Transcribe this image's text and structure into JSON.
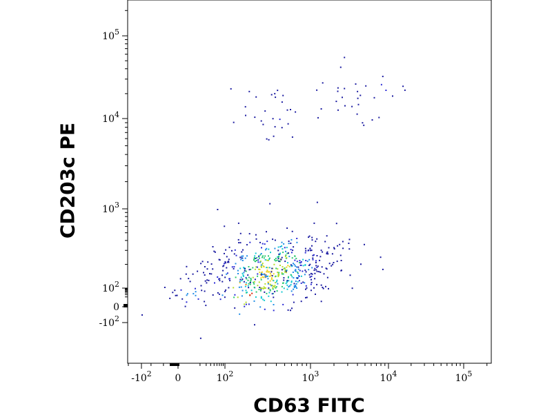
{
  "chart_data": {
    "type": "scatter",
    "plot_style": "density (pseudocolor) flow cytometry dot plot",
    "xlabel": "CD63 FITC",
    "ylabel": "CD203c PE",
    "x_scale": "biexponential (logicle)",
    "y_scale": "biexponential (logicle)",
    "xlim": [
      -200,
      200000
    ],
    "ylim": [
      -500,
      400000
    ],
    "grid": false,
    "x_ticks": [
      {
        "value": -100,
        "base": "-10",
        "exp": "2"
      },
      {
        "value": 0,
        "base": "0",
        "exp": ""
      },
      {
        "value": 100,
        "base": "10",
        "exp": "2"
      },
      {
        "value": 1000,
        "base": "10",
        "exp": "3"
      },
      {
        "value": 10000,
        "base": "10",
        "exp": "4"
      },
      {
        "value": 100000,
        "base": "10",
        "exp": "5"
      }
    ],
    "y_ticks": [
      {
        "value": -100,
        "base": "-10",
        "exp": "2"
      },
      {
        "value": 0,
        "base": "0",
        "exp": ""
      },
      {
        "value": 100,
        "base": "10",
        "exp": "2"
      },
      {
        "value": 1000,
        "base": "10",
        "exp": "3"
      },
      {
        "value": 10000,
        "base": "10",
        "exp": "4"
      },
      {
        "value": 100000,
        "base": "10",
        "exp": "5"
      }
    ],
    "colormap": [
      "#1a1aa0",
      "#2a2ad6",
      "#1e8ce6",
      "#12c8d2",
      "#28c86e",
      "#b4dc28",
      "#f0d21e",
      "#f58214",
      "#dc2814"
    ],
    "populations": [
      {
        "x": [
          10,
          60,
          80,
          95,
          110,
          130,
          160,
          180,
          200
        ],
        "y": [
          50,
          150,
          200,
          100,
          230,
          200,
          80,
          90,
          90
        ],
        "counts": [
          25,
          12,
          8,
          6,
          5,
          6,
          4,
          12,
          4
        ],
        "intensity": [
          3,
          2,
          0,
          4,
          2,
          5,
          5,
          8,
          9
        ]
      },
      {
        "x": [
          300,
          500,
          700,
          1200,
          2000
        ],
        "y": [
          150,
          200,
          250,
          300,
          250
        ],
        "counts": [
          300,
          150,
          70,
          15,
          8
        ],
        "intensity": [
          7,
          6,
          2,
          0,
          1
        ]
      },
      {
        "x": [
          300,
          400,
          500
        ],
        "y": [
          15000,
          10000,
          9000
        ],
        "counts": [
          12,
          8,
          10
        ],
        "intensity": [
          0,
          1,
          1
        ]
      },
      {
        "x": [
          3000,
          5000,
          7000
        ],
        "y": [
          15000,
          20000,
          25000
        ],
        "counts": [
          12,
          8,
          10
        ],
        "intensity": [
          0,
          1,
          2
        ]
      }
    ],
    "outliers": [
      {
        "x": 60,
        "y": 1000
      },
      {
        "x": 1200,
        "y": 1200
      },
      {
        "x": -100,
        "y": -20
      },
      {
        "x": 20,
        "y": -400
      }
    ]
  }
}
